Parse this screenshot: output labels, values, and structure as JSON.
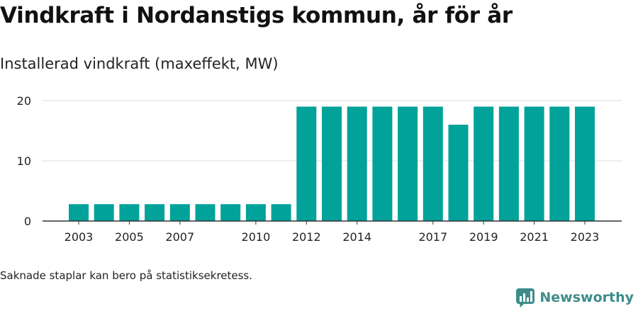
{
  "title": "Vindkraft i Nordanstigs kommun, år för år",
  "subtitle": "Installerad vindkraft (maxeffekt, MW)",
  "footnote": "Saknade staplar kan bero på statistiksekretess.",
  "brand": {
    "name": "Newsworthy",
    "icon": "newsworthy-logo-icon",
    "color": "#3e8c8a"
  },
  "colors": {
    "bar": "#00a29a",
    "grid": "#dddddd",
    "axis": "#333333"
  },
  "chart_data": {
    "type": "bar",
    "title": "Vindkraft i Nordanstigs kommun, år för år",
    "subtitle": "Installerad vindkraft (maxeffekt, MW)",
    "categories": [
      "2003",
      "2004",
      "2005",
      "2006",
      "2007",
      "2008",
      "2009",
      "2010",
      "2011",
      "2012",
      "2013",
      "2014",
      "2015",
      "2016",
      "2017",
      "2018",
      "2019",
      "2020",
      "2021",
      "2022",
      "2023"
    ],
    "values": [
      2.8,
      2.8,
      2.8,
      2.8,
      2.8,
      2.8,
      2.8,
      2.8,
      2.8,
      19,
      19,
      19,
      19,
      19,
      19,
      16,
      19,
      19,
      19,
      19,
      19
    ],
    "x_tick_labels": [
      "2003",
      "2005",
      "2007",
      "2010",
      "2012",
      "2014",
      "2017",
      "2019",
      "2021",
      "2023"
    ],
    "y_ticks": [
      0,
      10,
      20
    ],
    "ylim": [
      0,
      20
    ],
    "grid": true,
    "legend": "none"
  }
}
